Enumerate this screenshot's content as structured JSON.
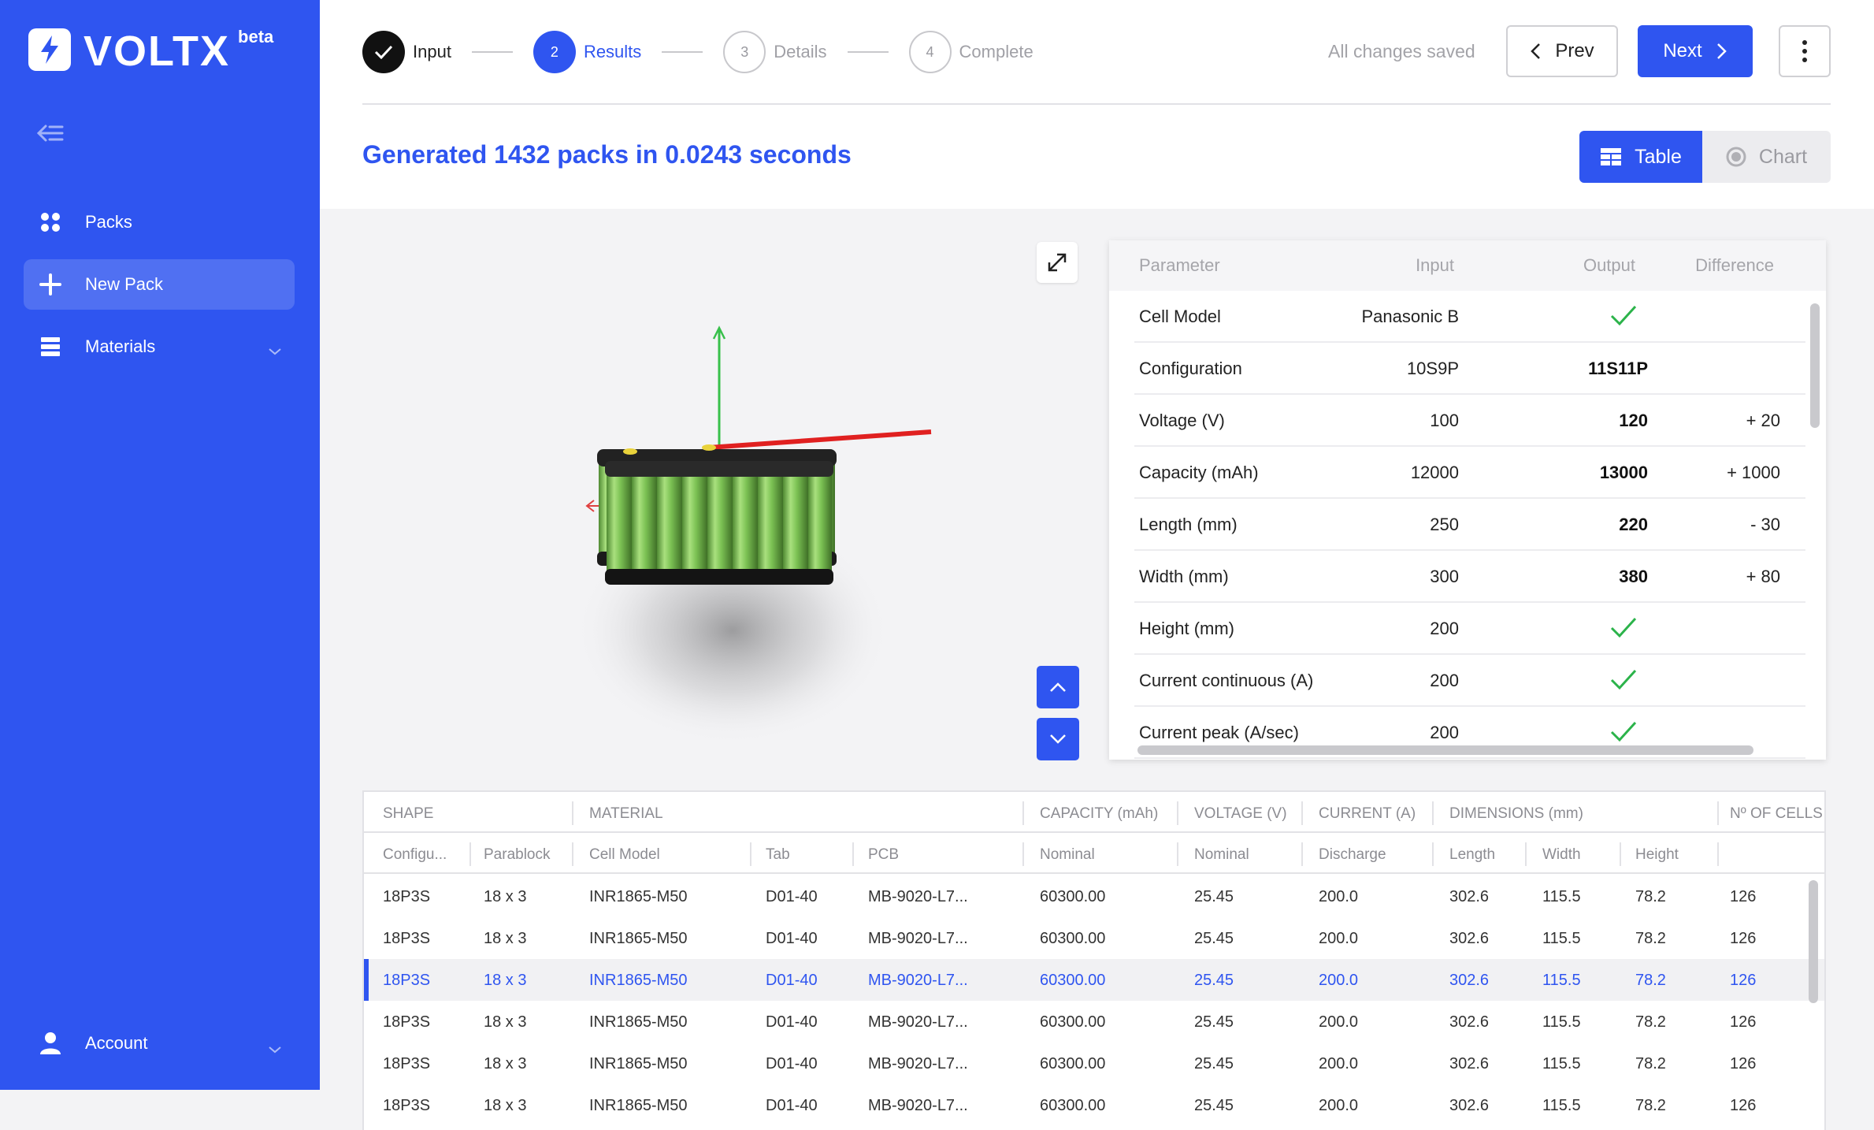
{
  "brand": {
    "name": "VOLTX",
    "tag": "beta"
  },
  "sidebar": {
    "items": [
      {
        "label": "Packs",
        "icon": "grid-icon"
      },
      {
        "label": "New Pack",
        "icon": "plus-icon"
      },
      {
        "label": "Materials",
        "icon": "stack-icon"
      }
    ],
    "account_label": "Account"
  },
  "stepper": {
    "steps": [
      {
        "number": "",
        "label": "Input",
        "state": "done"
      },
      {
        "number": "2",
        "label": "Results",
        "state": "current"
      },
      {
        "number": "3",
        "label": "Details",
        "state": "todo"
      },
      {
        "number": "4",
        "label": "Complete",
        "state": "todo"
      }
    ]
  },
  "header": {
    "saved_status": "All changes saved",
    "prev_label": "Prev",
    "next_label": "Next",
    "generated_text": "Generated 1432 packs in 0.0243 seconds",
    "view_table_label": "Table",
    "view_chart_label": "Chart"
  },
  "params": {
    "headers": {
      "parameter": "Parameter",
      "input": "Input",
      "output": "Output",
      "difference": "Difference"
    },
    "rows": [
      {
        "name": "Cell Model",
        "input": "Panasonic B",
        "output": "",
        "diff": "",
        "match": true
      },
      {
        "name": "Configuration",
        "input": "10S9P",
        "output": "11S11P",
        "diff": "",
        "match": false
      },
      {
        "name": "Voltage (V)",
        "input": "100",
        "output": "120",
        "diff": "+ 20",
        "match": false
      },
      {
        "name": "Capacity (mAh)",
        "input": "12000",
        "output": "13000",
        "diff": "+ 1000",
        "match": false
      },
      {
        "name": "Length (mm)",
        "input": "250",
        "output": "220",
        "diff": "- 30",
        "match": false
      },
      {
        "name": "Width (mm)",
        "input": "300",
        "output": "380",
        "diff": "+ 80",
        "match": false
      },
      {
        "name": "Height (mm)",
        "input": "200",
        "output": "",
        "diff": "",
        "match": true
      },
      {
        "name": "Current continuous (A)",
        "input": "200",
        "output": "",
        "diff": "",
        "match": true
      },
      {
        "name": "Current peak (A/sec)",
        "input": "200",
        "output": "",
        "diff": "",
        "match": true
      }
    ]
  },
  "results": {
    "groups": {
      "shape": "SHAPE",
      "material": "MATERIAL",
      "capacity": "CAPACITY (mAh)",
      "voltage": "VOLTAGE (V)",
      "current": "CURRENT (A)",
      "dimensions": "DIMENSIONS (mm)",
      "cells": "Nº OF CELLS"
    },
    "columns": {
      "configuration": "Configu...",
      "parablock": "Parablock",
      "cell_model": "Cell Model",
      "tab": "Tab",
      "pcb": "PCB",
      "nominal_capacity": "Nominal",
      "nominal_voltage": "Nominal",
      "discharge": "Discharge",
      "length": "Length",
      "width": "Width",
      "height": "Height"
    },
    "rows": [
      [
        "18P3S",
        "18 x 3",
        "INR1865-M50",
        "D01-40",
        "MB-9020-L7...",
        "60300.00",
        "25.45",
        "200.0",
        "302.6",
        "115.5",
        "78.2",
        "126"
      ],
      [
        "18P3S",
        "18 x 3",
        "INR1865-M50",
        "D01-40",
        "MB-9020-L7...",
        "60300.00",
        "25.45",
        "200.0",
        "302.6",
        "115.5",
        "78.2",
        "126"
      ],
      [
        "18P3S",
        "18 x 3",
        "INR1865-M50",
        "D01-40",
        "MB-9020-L7...",
        "60300.00",
        "25.45",
        "200.0",
        "302.6",
        "115.5",
        "78.2",
        "126"
      ],
      [
        "18P3S",
        "18 x 3",
        "INR1865-M50",
        "D01-40",
        "MB-9020-L7...",
        "60300.00",
        "25.45",
        "200.0",
        "302.6",
        "115.5",
        "78.2",
        "126"
      ],
      [
        "18P3S",
        "18 x 3",
        "INR1865-M50",
        "D01-40",
        "MB-9020-L7...",
        "60300.00",
        "25.45",
        "200.0",
        "302.6",
        "115.5",
        "78.2",
        "126"
      ],
      [
        "18P3S",
        "18 x 3",
        "INR1865-M50",
        "D01-40",
        "MB-9020-L7...",
        "60300.00",
        "25.45",
        "200.0",
        "302.6",
        "115.5",
        "78.2",
        "126"
      ]
    ],
    "selected_row": 2
  },
  "colors": {
    "accent": "#2f55f0",
    "check": "#2bb34a"
  }
}
